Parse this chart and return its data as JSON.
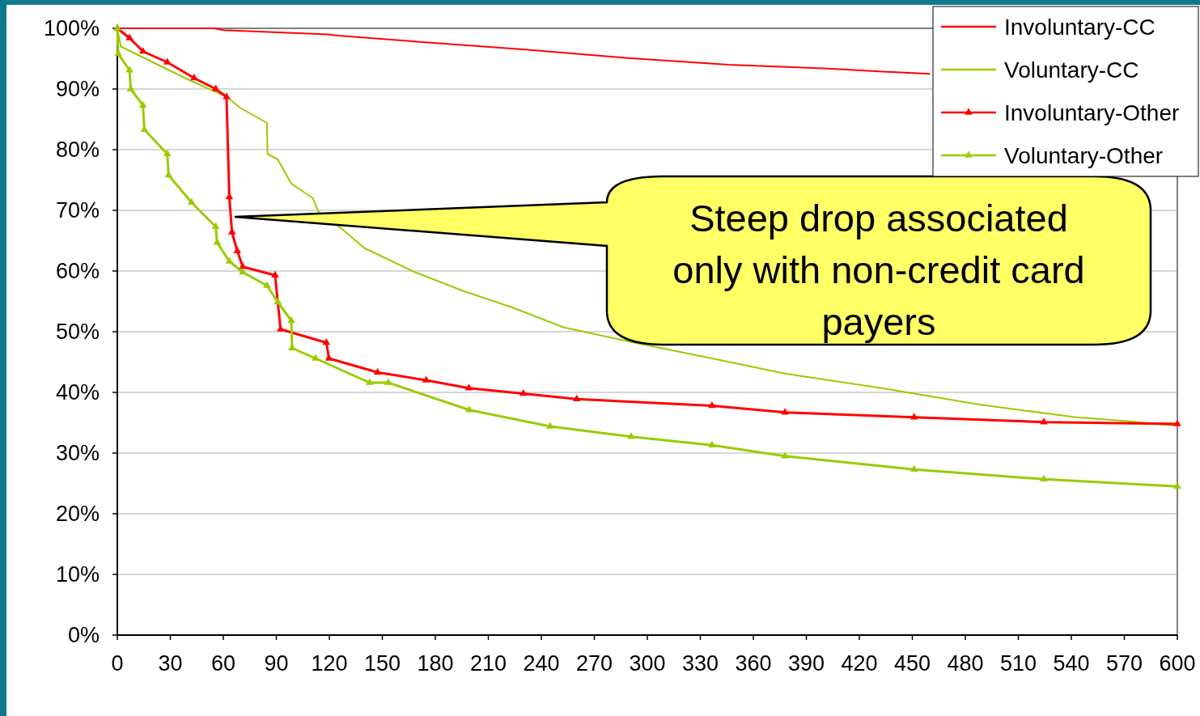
{
  "chart_data": {
    "type": "line",
    "xlim": [
      0,
      600
    ],
    "xticks": [
      0,
      30,
      60,
      90,
      120,
      150,
      180,
      210,
      240,
      270,
      300,
      330,
      360,
      390,
      420,
      450,
      480,
      510,
      540,
      570,
      600
    ],
    "ylim": [
      0,
      100
    ],
    "yticks": [
      {
        "value": 0,
        "label": "0%"
      },
      {
        "value": 10,
        "label": "10%"
      },
      {
        "value": 20,
        "label": "20%"
      },
      {
        "value": 30,
        "label": "30%"
      },
      {
        "value": 40,
        "label": "40%"
      },
      {
        "value": 50,
        "label": "50%"
      },
      {
        "value": 60,
        "label": "60%"
      },
      {
        "value": 70,
        "label": "70%"
      },
      {
        "value": 80,
        "label": "80%"
      },
      {
        "value": 90,
        "label": "90%"
      },
      {
        "value": 100,
        "label": "100%"
      }
    ],
    "grid": "y",
    "legend": "top right",
    "line_style": "solid",
    "series": [
      {
        "name": "Involuntary-CC",
        "color": "#ff0000",
        "marker": "none",
        "x": [
          0,
          55,
          60,
          119,
          125,
          174,
          231,
          289,
          346,
          400,
          431,
          460
        ],
        "values": [
          100,
          100,
          99.7,
          99,
          98.8,
          97.7,
          96.5,
          95.1,
          94,
          93.4,
          92.9,
          92.5
        ]
      },
      {
        "name": "Voluntary-CC",
        "color": "#99cc00",
        "marker": "none",
        "x": [
          0,
          2,
          30,
          42,
          62,
          69.5,
          84.7,
          85,
          90.8,
          98.5,
          110.7,
          113.7,
          127.3,
          139.7,
          168.6,
          196,
          223.5,
          252.8,
          290.8,
          336.6,
          377.9,
          432.8,
          487.8,
          542.7,
          570,
          600
        ],
        "values": [
          100,
          97,
          93,
          91.3,
          88.7,
          86.9,
          84.4,
          79.3,
          78.4,
          74.4,
          72,
          69.8,
          66.9,
          63.8,
          59.8,
          56.7,
          54,
          50.7,
          48.3,
          45.6,
          43.1,
          40.7,
          38,
          35.9,
          35.3,
          34.5
        ]
      },
      {
        "name": "Involuntary-Other",
        "color": "#ff0000",
        "marker": "triangle",
        "x": [
          0,
          6.9,
          14.5,
          28.3,
          43.5,
          55.7,
          61.8,
          63.4,
          64.9,
          67.9,
          71,
          89.3,
          92.4,
          118.3,
          119.8,
          147.3,
          174.8,
          199,
          229.8,
          260,
          336.6,
          377.9,
          451,
          524.4,
          600
        ],
        "values": [
          100,
          98.4,
          96.2,
          94.4,
          91.8,
          90,
          88.7,
          72.2,
          66.4,
          63.3,
          60.7,
          59.3,
          50.4,
          48.2,
          45.6,
          43.3,
          42,
          40.7,
          39.8,
          38.9,
          37.8,
          36.7,
          35.9,
          35.1,
          34.8
        ]
      },
      {
        "name": "Voluntary-Other",
        "color": "#99cc00",
        "marker": "triangle",
        "x": [
          0,
          0.5,
          6.9,
          7.6,
          14.5,
          15.3,
          28.3,
          29,
          42,
          55.7,
          56.5,
          63.4,
          71,
          84.7,
          90.8,
          98.5,
          98.9,
          112.2,
          142.8,
          153.4,
          199.2,
          245,
          290.8,
          336.6,
          377.9,
          451,
          524.4,
          600
        ],
        "values": [
          100,
          95.8,
          93.1,
          90,
          87.3,
          83.3,
          79.3,
          75.8,
          71.3,
          67.3,
          64.7,
          61.6,
          59.8,
          57.6,
          54.9,
          51.8,
          47.3,
          45.6,
          41.6,
          41.6,
          37.1,
          34.4,
          32.7,
          31.3,
          29.5,
          27.3,
          25.7,
          24.5
        ]
      }
    ],
    "annotations": [
      "Steep drop associated only with non-credit card payers"
    ]
  }
}
